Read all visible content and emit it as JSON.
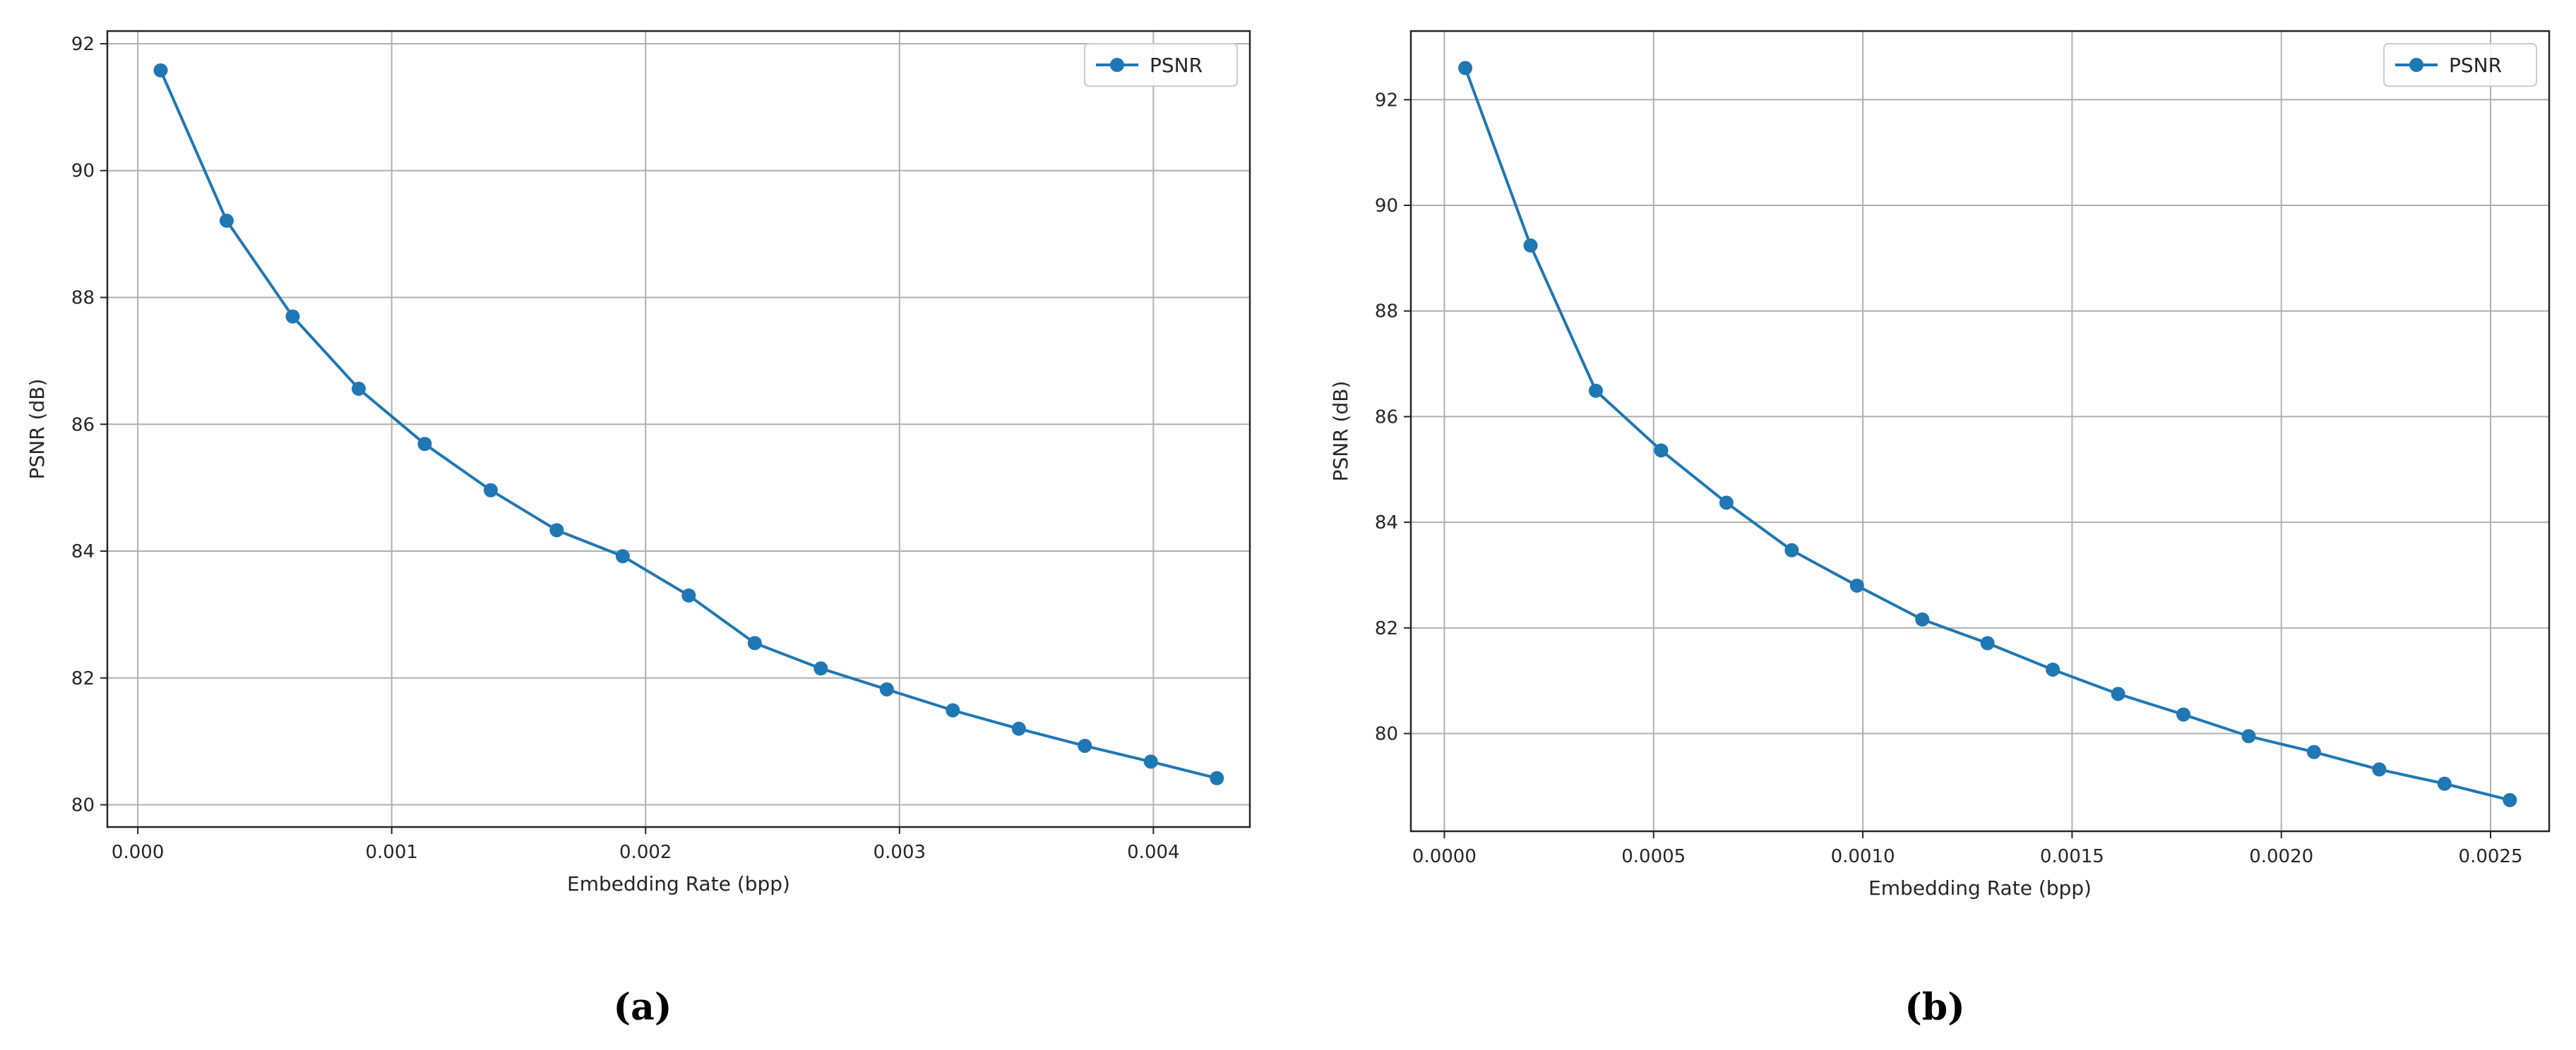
{
  "chart_data": [
    {
      "type": "line",
      "caption": "(a)",
      "xlabel": "Embedding Rate (bpp)",
      "ylabel": "PSNR (dB)",
      "xlim": [
        -0.00012,
        0.00438
      ],
      "ylim": [
        79.65,
        92.2
      ],
      "xticks": [
        0.0,
        0.001,
        0.002,
        0.003,
        0.004
      ],
      "xtick_labels": [
        "0.000",
        "0.001",
        "0.002",
        "0.003",
        "0.004"
      ],
      "yticks": [
        80,
        82,
        84,
        86,
        88,
        90,
        92
      ],
      "ytick_labels": [
        "80",
        "82",
        "84",
        "86",
        "88",
        "90",
        "92"
      ],
      "grid": true,
      "legend": "top-right",
      "color": "#1f77b4",
      "series": [
        {
          "name": "PSNR",
          "x": [
            9e-05,
            0.00035,
            0.00061,
            0.00087,
            0.00113,
            0.00139,
            0.00165,
            0.00191,
            0.00217,
            0.00243,
            0.00269,
            0.00295,
            0.00321,
            0.00347,
            0.00373,
            0.00399,
            0.00425
          ],
          "y": [
            91.58,
            89.21,
            87.7,
            86.56,
            85.69,
            84.96,
            84.33,
            83.92,
            83.3,
            82.55,
            82.15,
            81.82,
            81.49,
            81.2,
            80.93,
            80.68,
            80.42
          ]
        }
      ]
    },
    {
      "type": "line",
      "caption": "(b)",
      "xlabel": "Embedding Rate (bpp)",
      "ylabel": "PSNR (dB)",
      "xlim": [
        -8e-05,
        0.00264
      ],
      "ylim": [
        78.15,
        93.3
      ],
      "xticks": [
        0.0,
        0.0005,
        0.001,
        0.0015,
        0.002,
        0.0025
      ],
      "xtick_labels": [
        "0.0000",
        "0.0005",
        "0.0010",
        "0.0015",
        "0.0020",
        "0.0025"
      ],
      "yticks": [
        80,
        82,
        84,
        86,
        88,
        90,
        92
      ],
      "ytick_labels": [
        "80",
        "82",
        "84",
        "86",
        "88",
        "90",
        "92"
      ],
      "grid": true,
      "legend": "top-right",
      "color": "#1f77b4",
      "series": [
        {
          "name": "PSNR",
          "x": [
            5e-05,
            0.000206,
            0.000362,
            0.000518,
            0.000674,
            0.00083,
            0.000986,
            0.001142,
            0.001298,
            0.001454,
            0.00161,
            0.001766,
            0.001922,
            0.002078,
            0.002234,
            0.00239,
            0.002546
          ],
          "y": [
            92.6,
            89.24,
            86.49,
            85.36,
            84.37,
            83.47,
            82.8,
            82.16,
            81.71,
            81.21,
            80.75,
            80.36,
            79.95,
            79.65,
            79.32,
            79.05,
            78.74
          ]
        }
      ]
    }
  ]
}
